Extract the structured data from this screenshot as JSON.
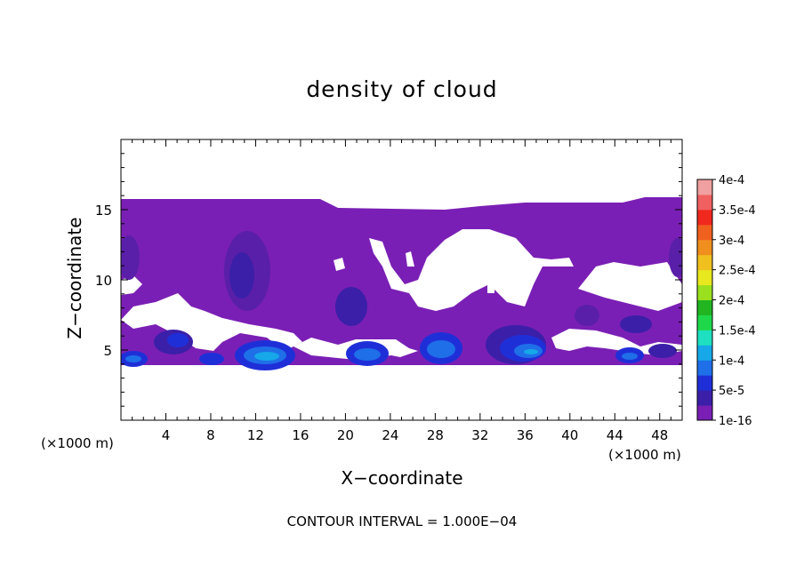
{
  "chart_data": {
    "type": "heatmap",
    "title": "density of cloud",
    "xlabel": "X−coordinate",
    "ylabel": "Z−coordinate",
    "x_unit": "(×1000 m)",
    "xlim": [
      0,
      50
    ],
    "ylim": [
      0,
      20
    ],
    "x_ticks": [
      4,
      8,
      12,
      16,
      20,
      24,
      28,
      32,
      36,
      40,
      44,
      48
    ],
    "y_ticks": [
      5,
      10,
      15
    ],
    "colorbar": {
      "levels": [
        "1e-16",
        "5e-5",
        "1e-4",
        "1.5e-4",
        "2e-4",
        "2.5e-4",
        "3e-4",
        "3.5e-4",
        "4e-4"
      ],
      "colors": [
        "#7a1fb5",
        "#3b1fa8",
        "#1f2fd8",
        "#1f6fe8",
        "#16a8e8",
        "#1ee0c0",
        "#1fd84a",
        "#21b521",
        "#9ae01e",
        "#e8e81e",
        "#f0c01e",
        "#f08f1e",
        "#f0601e",
        "#f0281e",
        "#f06060",
        "#f0a0a0"
      ]
    },
    "annotation": "CONTOUR INTERVAL = 1.000E−04"
  }
}
